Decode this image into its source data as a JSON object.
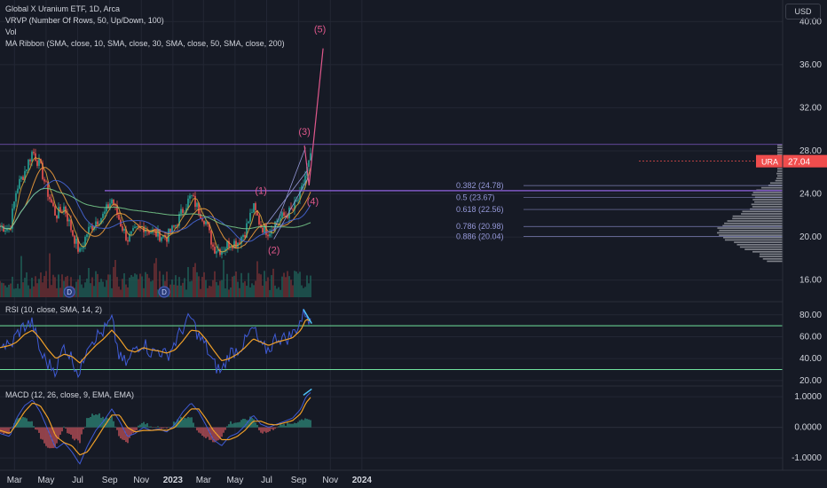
{
  "header": {
    "symbol": "Global X Uranium ETF, 1D, Arca",
    "ind1": "VRVP (Number Of Rows, 50, Up/Down, 100)",
    "ind2": "Vol",
    "ind3": "MA Ribbon (SMA, close, 10, SMA, close, 30, SMA, close, 50, SMA, close, 200)",
    "currency": "USD"
  },
  "chart_data": [
    {
      "type": "candlestick",
      "title": "Global X Uranium ETF, 1D, Arca",
      "ticker": "URA",
      "last_price": "27.04",
      "ylim": [
        14,
        42
      ],
      "y_ticks": [
        "40.00",
        "36.00",
        "32.00",
        "28.00",
        "24.00",
        "20.00",
        "16.00"
      ],
      "x_ticks": [
        "Mar",
        "May",
        "Jul",
        "Sep",
        "Nov",
        "2023",
        "Mar",
        "May",
        "Jul",
        "Sep",
        "Nov",
        "2024"
      ],
      "x_tick_dates": [
        "2022-03",
        "2022-05",
        "2022-07",
        "2022-09",
        "2022-11",
        "2023-01",
        "2023-03",
        "2023-05",
        "2023-07",
        "2023-09",
        "2023-11",
        "2024-01"
      ],
      "close_series": {
        "dates": [
          "2022-02-01",
          "2022-02-20",
          "2022-03-05",
          "2022-03-20",
          "2022-04-05",
          "2022-04-20",
          "2022-05-05",
          "2022-05-20",
          "2022-06-05",
          "2022-06-20",
          "2022-07-05",
          "2022-07-20",
          "2022-08-05",
          "2022-08-20",
          "2022-09-05",
          "2022-09-20",
          "2022-10-05",
          "2022-10-20",
          "2022-11-05",
          "2022-11-20",
          "2022-12-05",
          "2022-12-20",
          "2023-01-05",
          "2023-01-20",
          "2023-02-05",
          "2023-02-20",
          "2023-03-05",
          "2023-03-20",
          "2023-04-05",
          "2023-04-20",
          "2023-05-05",
          "2023-05-20",
          "2023-06-05",
          "2023-06-20",
          "2023-07-05",
          "2023-07-20",
          "2023-08-05",
          "2023-08-20",
          "2023-09-05",
          "2023-09-15",
          "2023-09-25"
        ],
        "values": [
          21.0,
          20.8,
          24.5,
          26.0,
          28.0,
          26.5,
          24.0,
          22.0,
          22.8,
          20.5,
          18.5,
          20.5,
          21.5,
          22.0,
          23.5,
          21.5,
          19.8,
          20.5,
          21.0,
          20.5,
          20.2,
          20.0,
          21.0,
          22.5,
          23.8,
          22.5,
          21.5,
          19.0,
          18.8,
          19.5,
          19.5,
          20.5,
          22.8,
          21.0,
          20.5,
          21.5,
          22.0,
          22.5,
          24.0,
          26.0,
          27.5
        ]
      },
      "fib_levels": [
        {
          "label": "0.382 (24.78)",
          "value": 24.78
        },
        {
          "label": "0.5 (23.67)",
          "value": 23.67
        },
        {
          "label": "0.618 (22.56)",
          "value": 22.56
        },
        {
          "label": "0.786 (20.98)",
          "value": 20.98
        },
        {
          "label": "0.886 (20.04)",
          "value": 20.04
        }
      ],
      "horizontal_lines": [
        28.6,
        24.3
      ],
      "wave_labels": [
        {
          "label": "(1)",
          "date": "2023-06-20",
          "value": 24.0
        },
        {
          "label": "(2)",
          "date": "2023-07-15",
          "value": 18.5
        },
        {
          "label": "(3)",
          "date": "2023-09-12",
          "value": 29.5
        },
        {
          "label": "(4)",
          "date": "2023-09-28",
          "value": 23.0
        },
        {
          "label": "(5)",
          "date": "2023-10-12",
          "value": 39.0
        }
      ],
      "projection": [
        {
          "date": "2023-09-12",
          "value": 28.5
        },
        {
          "date": "2023-09-21",
          "value": 24.8
        },
        {
          "date": "2023-10-18",
          "value": 37.5
        }
      ],
      "dividend_markers": [
        {
          "label": "D",
          "date": "2022-06-15"
        },
        {
          "label": "D",
          "date": "2022-12-15"
        }
      ]
    },
    {
      "type": "line",
      "title": "RSI (10, close, SMA, 14, 2)",
      "ylim": [
        15,
        92
      ],
      "y_ticks": [
        "80.00",
        "60.00",
        "40.00",
        "20.00"
      ],
      "horizontal_lines": [
        70,
        30
      ],
      "series": [
        {
          "values": [
            55,
            50,
            62,
            70,
            72,
            45,
            35,
            30,
            52,
            40,
            25,
            55,
            60,
            65,
            75,
            40,
            35,
            50,
            55,
            45,
            48,
            42,
            55,
            68,
            78,
            60,
            52,
            35,
            28,
            45,
            48,
            55,
            68,
            50,
            48,
            60,
            58,
            62,
            75,
            84,
            70
          ]
        },
        {
          "values": [
            50,
            52,
            55,
            62,
            66,
            58,
            48,
            40,
            44,
            42,
            36,
            44,
            52,
            58,
            66,
            58,
            48,
            46,
            50,
            48,
            47,
            45,
            48,
            56,
            66,
            65,
            58,
            48,
            38,
            40,
            44,
            50,
            58,
            55,
            52,
            55,
            57,
            59,
            66,
            76,
            74
          ]
        }
      ],
      "divergence": {
        "from": {
          "date": "2023-09-10",
          "value": 85
        },
        "to": {
          "date": "2023-09-26",
          "value": 72
        }
      }
    },
    {
      "type": "bar+line",
      "title": "MACD (12, 26, close, 9, EMA, EMA)",
      "ylim": [
        -1.4,
        1.35
      ],
      "y_ticks": [
        "1.0000",
        "0.0000",
        "-1.0000"
      ],
      "series": [
        {
          "values": [
            -0.2,
            -0.3,
            0.3,
            0.7,
            0.9,
            0.5,
            -0.1,
            -0.7,
            -0.5,
            -0.8,
            -1.2,
            -0.6,
            -0.1,
            0.2,
            0.6,
            0.2,
            -0.3,
            -0.2,
            0.0,
            -0.1,
            -0.05,
            -0.15,
            0.1,
            0.5,
            0.8,
            0.5,
            0.1,
            -0.4,
            -0.6,
            -0.3,
            -0.2,
            0.05,
            0.4,
            0.1,
            0.0,
            0.1,
            0.2,
            0.3,
            0.6,
            1.0,
            1.15
          ]
        },
        {
          "values": [
            -0.1,
            -0.2,
            0.1,
            0.5,
            0.8,
            0.7,
            0.3,
            -0.3,
            -0.5,
            -0.6,
            -0.9,
            -0.8,
            -0.4,
            0.0,
            0.4,
            0.4,
            0.0,
            -0.15,
            -0.1,
            -0.1,
            -0.08,
            -0.1,
            0.0,
            0.3,
            0.6,
            0.6,
            0.3,
            -0.1,
            -0.4,
            -0.4,
            -0.3,
            -0.1,
            0.2,
            0.2,
            0.1,
            0.08,
            0.15,
            0.22,
            0.45,
            0.8,
            1.0
          ]
        }
      ],
      "divergence": {
        "from": {
          "date": "2023-09-10",
          "value": 1.05
        },
        "to": {
          "date": "2023-09-26",
          "value": 1.25
        }
      }
    }
  ],
  "colors": {
    "background": "#161a25",
    "grid": "#232734",
    "text": "#d1d4dc",
    "up": "#26a69a",
    "down": "#ef5350",
    "resistance": "#7e57c2",
    "fib": "#9598d8",
    "wave": "#e0588c",
    "rsi": "#3f5bd6",
    "signal": "#f0a028",
    "rsi_band": "#70e39e",
    "divergence": "#4fc3f7",
    "vrvp": "#d7d9de",
    "ticker_bg": "#ef4d4d"
  }
}
